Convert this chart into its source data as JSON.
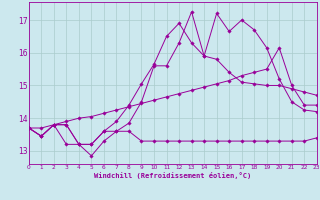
{
  "xlabel": "Windchill (Refroidissement éolien,°C)",
  "background_color": "#cce8ee",
  "grid_color": "#aacccc",
  "line_color": "#990099",
  "x_ticks": [
    0,
    1,
    2,
    3,
    4,
    5,
    6,
    7,
    8,
    9,
    10,
    11,
    12,
    13,
    14,
    15,
    16,
    17,
    18,
    19,
    20,
    21,
    22,
    23
  ],
  "y_ticks": [
    13,
    14,
    15,
    16,
    17
  ],
  "xlim": [
    0,
    23
  ],
  "ylim": [
    12.6,
    17.55
  ],
  "series": {
    "line1": {
      "x": [
        0,
        1,
        2,
        3,
        4,
        5,
        6,
        7,
        8,
        9,
        10,
        11,
        12,
        13,
        14,
        15,
        16,
        17,
        18,
        19,
        20,
        21,
        22,
        23
      ],
      "y": [
        13.7,
        13.45,
        13.8,
        13.2,
        13.2,
        12.85,
        13.3,
        13.6,
        13.6,
        13.3,
        13.3,
        13.3,
        13.3,
        13.3,
        13.3,
        13.3,
        13.3,
        13.3,
        13.3,
        13.3,
        13.3,
        13.3,
        13.3,
        13.4
      ]
    },
    "line2": {
      "x": [
        0,
        1,
        2,
        3,
        4,
        5,
        6,
        7,
        8,
        9,
        10,
        11,
        12,
        13,
        14,
        15,
        16,
        17,
        18,
        19,
        20,
        21,
        22,
        23
      ],
      "y": [
        13.7,
        13.45,
        13.8,
        13.8,
        13.2,
        13.2,
        13.6,
        13.6,
        13.85,
        14.5,
        15.6,
        15.6,
        16.3,
        17.25,
        15.9,
        17.2,
        16.65,
        17.0,
        16.7,
        16.15,
        15.2,
        14.5,
        14.25,
        14.2
      ]
    },
    "line3": {
      "x": [
        0,
        1,
        2,
        3,
        4,
        5,
        6,
        7,
        8,
        9,
        10,
        11,
        12,
        13,
        14,
        15,
        16,
        17,
        18,
        19,
        20,
        21,
        22,
        23
      ],
      "y": [
        13.7,
        13.45,
        13.8,
        13.8,
        13.2,
        13.2,
        13.6,
        13.9,
        14.4,
        15.05,
        15.65,
        16.5,
        16.9,
        16.3,
        15.9,
        15.8,
        15.4,
        15.1,
        15.05,
        15.0,
        15.0,
        14.9,
        14.8,
        14.7
      ]
    },
    "line4": {
      "x": [
        0,
        1,
        2,
        3,
        4,
        5,
        6,
        7,
        8,
        9,
        10,
        11,
        12,
        13,
        14,
        15,
        16,
        17,
        18,
        19,
        20,
        21,
        22,
        23
      ],
      "y": [
        13.7,
        13.7,
        13.8,
        13.9,
        14.0,
        14.05,
        14.15,
        14.25,
        14.35,
        14.45,
        14.55,
        14.65,
        14.75,
        14.85,
        14.95,
        15.05,
        15.15,
        15.3,
        15.4,
        15.5,
        16.15,
        15.0,
        14.4,
        14.4
      ]
    }
  }
}
